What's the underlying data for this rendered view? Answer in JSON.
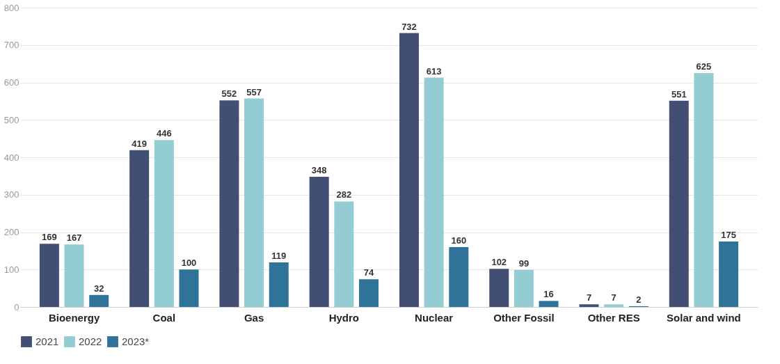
{
  "chart_data": {
    "type": "bar",
    "categories": [
      "Bioenergy",
      "Coal",
      "Gas",
      "Hydro",
      "Nuclear",
      "Other Fossil",
      "Other RES",
      "Solar and wind"
    ],
    "series": [
      {
        "name": "2021",
        "color": "#434e75",
        "values": [
          169,
          419,
          552,
          348,
          732,
          102,
          7,
          551
        ]
      },
      {
        "name": "2022",
        "color": "#93cdd3",
        "values": [
          167,
          446,
          557,
          282,
          613,
          99,
          7,
          625
        ]
      },
      {
        "name": "2023*",
        "color": "#2f7399",
        "values": [
          32,
          100,
          119,
          74,
          160,
          16,
          2,
          175
        ]
      }
    ],
    "ylim": [
      0,
      800
    ],
    "yticks": [
      0,
      100,
      200,
      300,
      400,
      500,
      600,
      700,
      800
    ],
    "grid": "y",
    "legend": "bottom left",
    "data_labels": true
  }
}
